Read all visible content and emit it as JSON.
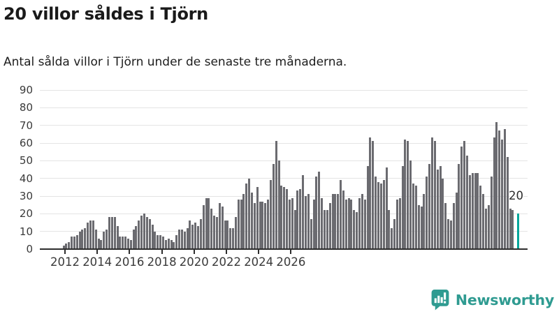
{
  "header": {
    "title": "20 villor såldes i Tjörn",
    "subtitle": "Antal sålda villor i Tjörn under de senaste tre månaderna."
  },
  "chart_data": {
    "type": "bar",
    "title": "20 villor såldes i Tjörn",
    "xlabel": "",
    "ylabel": "",
    "ylim": [
      0,
      90
    ],
    "grid": true,
    "y_ticks": [
      0,
      10,
      20,
      30,
      40,
      50,
      60,
      70,
      80,
      90
    ],
    "x_tick_labels": [
      "2012",
      "2014",
      "2016",
      "2018",
      "2020",
      "2022",
      "2024",
      "2026"
    ],
    "bar_color": "#6b6b70",
    "values": [
      2,
      3,
      4,
      7,
      7,
      8,
      10,
      11,
      12,
      15,
      16,
      16,
      11,
      6,
      5,
      10,
      11,
      18,
      18,
      18,
      13,
      7,
      7,
      7,
      6,
      5,
      11,
      13,
      16,
      19,
      20,
      18,
      17,
      14,
      10,
      8,
      8,
      7,
      5,
      6,
      5,
      4,
      8,
      11,
      11,
      10,
      12,
      16,
      14,
      15,
      13,
      17,
      25,
      29,
      29,
      23,
      19,
      18,
      26,
      24,
      16,
      16,
      12,
      12,
      18,
      28,
      28,
      31,
      37,
      40,
      32,
      26,
      35,
      27,
      27,
      26,
      28,
      39,
      48,
      61,
      50,
      36,
      35,
      34,
      28,
      29,
      22,
      33,
      34,
      42,
      30,
      31,
      17,
      28,
      41,
      44,
      29,
      22,
      22,
      26,
      31,
      31,
      31,
      39,
      33,
      28,
      29,
      28,
      22,
      21,
      29,
      31,
      28,
      47,
      63,
      61,
      41,
      38,
      37,
      39,
      46,
      22,
      12,
      17,
      28,
      29,
      47,
      62,
      61,
      50,
      37,
      36,
      25,
      24,
      31,
      41,
      48,
      63,
      61,
      45,
      47,
      40,
      26,
      17,
      16,
      26,
      32,
      48,
      58,
      61,
      53,
      42,
      43,
      43,
      43,
      36,
      31,
      23,
      25,
      41,
      63,
      72,
      67,
      62,
      68,
      52,
      23,
      22,
      0,
      20
    ],
    "highlight": {
      "position": "last",
      "value": 20,
      "label": "20",
      "color": "#00a69b"
    }
  },
  "branding": {
    "name": "Newsworthy",
    "color": "#2f9b91",
    "icon": "newsworthy-speech-bubble-bar-chart-icon"
  }
}
